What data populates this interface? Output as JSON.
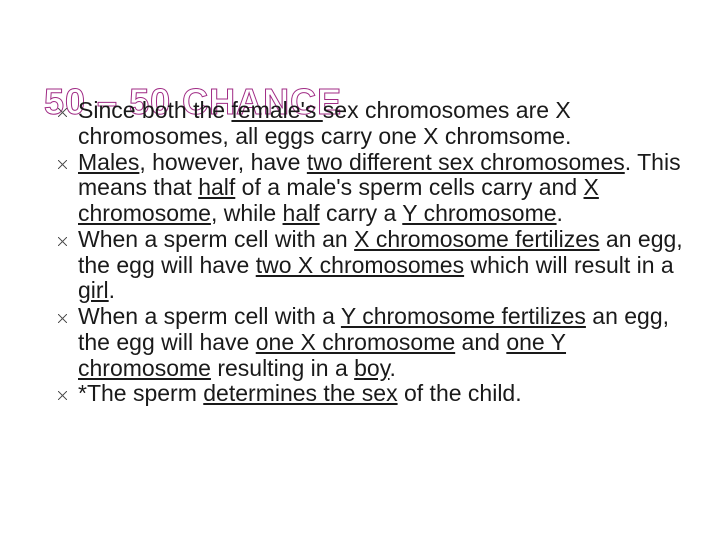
{
  "slide": {
    "title": "50 – 50 CHANCE",
    "title_color": "#a02b85",
    "title_fontsize": 36,
    "body_fontsize": 23,
    "body_color": "#1a1a1a",
    "bullet_marker": "star",
    "background_color": "#ffffff",
    "bullets": [
      {
        "runs": [
          {
            "t": "Since both the "
          },
          {
            "t": "female's ",
            "u": true
          },
          {
            "t": "sex chromosomes are X chromosomes, all eggs carry one X chromsome."
          }
        ]
      },
      {
        "runs": [
          {
            "t": "Males",
            "u": true
          },
          {
            "t": ", however, have "
          },
          {
            "t": "two different sex chromosomes",
            "u": true
          },
          {
            "t": ".  This means that "
          },
          {
            "t": "half",
            "u": true
          },
          {
            "t": " of a male's sperm cells carry and "
          },
          {
            "t": "X chromosome",
            "u": true
          },
          {
            "t": ", while "
          },
          {
            "t": "half",
            "u": true
          },
          {
            "t": " carry a "
          },
          {
            "t": "Y chromosome",
            "u": true
          },
          {
            "t": "."
          }
        ]
      },
      {
        "runs": [
          {
            "t": "When a sperm cell with an "
          },
          {
            "t": "X chromosome fertilizes",
            "u": true
          },
          {
            "t": " an egg, the egg will have "
          },
          {
            "t": "two X chromosomes",
            "u": true
          },
          {
            "t": " which will result in a "
          },
          {
            "t": "girl",
            "u": true
          },
          {
            "t": "."
          }
        ]
      },
      {
        "runs": [
          {
            "t": "When a sperm cell with a "
          },
          {
            "t": "Y chromosome fertilizes",
            "u": true
          },
          {
            "t": " an egg, the egg will have "
          },
          {
            "t": "one X chromosome",
            "u": true
          },
          {
            "t": " and "
          },
          {
            "t": "one Y chromosome",
            "u": true
          },
          {
            "t": " resulting in a "
          },
          {
            "t": "boy",
            "u": true
          },
          {
            "t": "."
          }
        ]
      },
      {
        "runs": [
          {
            "t": "*The sperm "
          },
          {
            "t": "determines the sex",
            "u": true
          },
          {
            "t": " of the child."
          }
        ]
      }
    ]
  }
}
